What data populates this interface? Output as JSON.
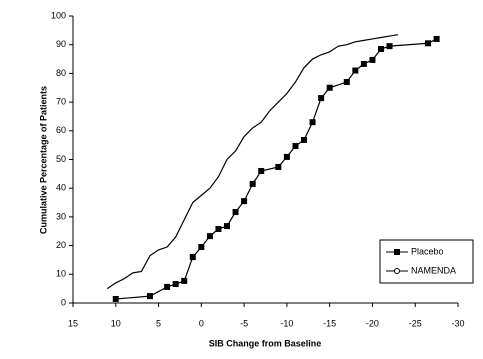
{
  "chart_data": {
    "type": "line",
    "x_label": "SIB Change from Baseline",
    "y_label": "Cumulative Percentage of Patients",
    "xlim": [
      15,
      -30
    ],
    "xticks": [
      15,
      10,
      5,
      0,
      -5,
      -10,
      -15,
      -20,
      -25,
      -30
    ],
    "ylim": [
      0,
      100
    ],
    "yticks": [
      0,
      10,
      20,
      30,
      40,
      50,
      60,
      70,
      80,
      90,
      100
    ],
    "grid": false,
    "legend": "lower right",
    "series": [
      {
        "name": "Placebo",
        "color": "#000000",
        "marker": "square",
        "x": [
          10,
          6,
          4,
          3,
          2,
          1,
          0,
          -1,
          -2,
          -3,
          -4,
          -5,
          -6,
          -7,
          -9,
          -10,
          -11,
          -12,
          -13,
          -14,
          -15,
          -17,
          -18,
          -19,
          -20,
          -21,
          -22,
          -26.5,
          -27.5
        ],
        "values": [
          1.4,
          2.4,
          5.6,
          6.6,
          7.7,
          16,
          19.5,
          23.3,
          25.8,
          26.8,
          31.7,
          35.5,
          41.5,
          46,
          47.4,
          50.9,
          54.7,
          56.8,
          63,
          71.4,
          75,
          77,
          81,
          83.3,
          84.7,
          88.5,
          89.5,
          90.5,
          92
        ]
      },
      {
        "name": "NAMENDA",
        "color": "#000000",
        "marker": "circle",
        "x": [
          11,
          10,
          9,
          8,
          7,
          6,
          5,
          4,
          3,
          2,
          1,
          0,
          -1,
          -2,
          -3,
          -4,
          -5,
          -6,
          -7,
          -8,
          -9,
          -10,
          -11,
          -12,
          -13,
          -14,
          -15,
          -16,
          -17,
          -18,
          -19,
          -20,
          -21,
          -22,
          -23
        ],
        "values": [
          5,
          7,
          8.5,
          10.5,
          11,
          16.5,
          18.5,
          19.5,
          23,
          29,
          35,
          37.5,
          40,
          44,
          50,
          53,
          58,
          61,
          63,
          67,
          70,
          73,
          77,
          82,
          85,
          86.5,
          87.5,
          89.5,
          90,
          91,
          91.5,
          92,
          92.5,
          93,
          93.5
        ]
      }
    ]
  }
}
